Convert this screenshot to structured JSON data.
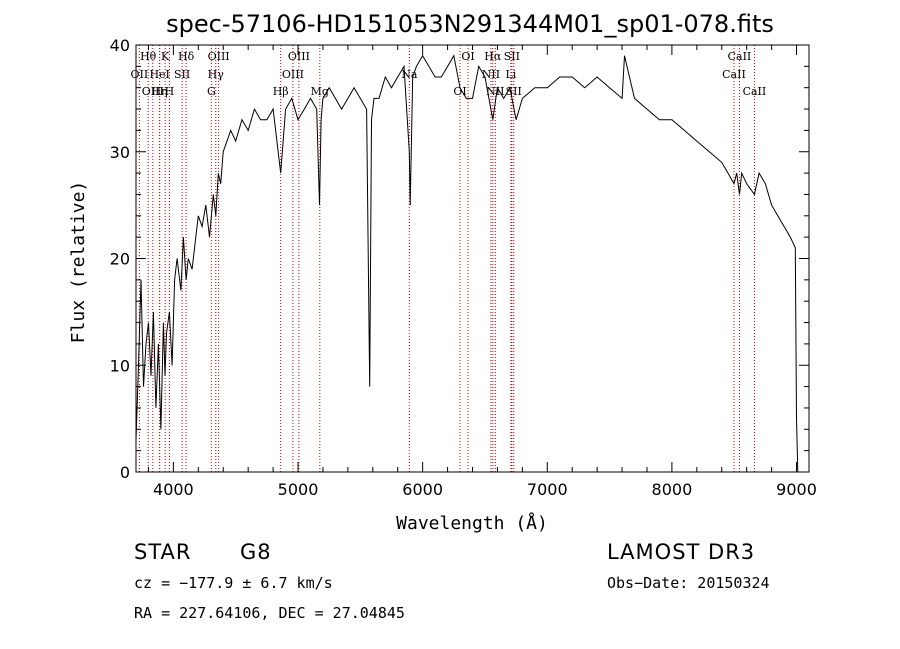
{
  "chart_data": {
    "type": "line",
    "title": "spec-57106-HD151053N291344M01_sp01-078.fits",
    "xlabel": "Wavelength (Å)",
    "ylabel": "Flux (relative)",
    "xlim": [
      3700,
      9100
    ],
    "ylim": [
      0,
      40
    ],
    "xticks": [
      4000,
      5000,
      6000,
      7000,
      8000,
      9000
    ],
    "yticks": [
      0,
      10,
      20,
      30,
      40
    ],
    "grid": false,
    "series": [
      {
        "color": "#000000",
        "x": [
          3700,
          3720,
          3740,
          3760,
          3780,
          3800,
          3820,
          3840,
          3860,
          3880,
          3900,
          3920,
          3933,
          3945,
          3968,
          3990,
          4010,
          4030,
          4060,
          4080,
          4102,
          4120,
          4150,
          4180,
          4200,
          4230,
          4260,
          4290,
          4320,
          4340,
          4360,
          4380,
          4400,
          4430,
          4460,
          4500,
          4550,
          4600,
          4650,
          4700,
          4750,
          4800,
          4861,
          4900,
          4950,
          5000,
          5050,
          5100,
          5150,
          5172,
          5185,
          5200,
          5250,
          5300,
          5350,
          5400,
          5450,
          5500,
          5550,
          5575,
          5590,
          5610,
          5650,
          5700,
          5750,
          5800,
          5850,
          5893,
          5900,
          5920,
          5950,
          6000,
          6050,
          6100,
          6150,
          6200,
          6250,
          6300,
          6350,
          6400,
          6450,
          6500,
          6563,
          6600,
          6650,
          6700,
          6750,
          6800,
          6900,
          7000,
          7100,
          7200,
          7300,
          7400,
          7500,
          7600,
          7620,
          7700,
          7800,
          7900,
          8000,
          8100,
          8200,
          8300,
          8400,
          8450,
          8498,
          8520,
          8542,
          8560,
          8600,
          8662,
          8700,
          8750,
          8800,
          8850,
          8900,
          8950,
          8990,
          9000,
          9010
        ],
        "y": [
          3,
          10,
          18,
          8,
          12,
          14,
          9,
          15,
          6,
          12,
          4,
          14,
          9,
          13,
          15,
          10,
          18,
          20,
          17,
          22,
          18,
          20,
          19,
          22,
          24,
          23,
          25,
          22,
          26,
          24,
          28,
          27,
          30,
          31,
          32,
          31,
          33,
          32,
          34,
          33,
          33,
          34,
          28,
          34,
          35,
          33,
          34,
          35,
          34,
          25,
          33,
          35,
          36,
          35,
          34,
          35,
          36,
          35,
          34,
          8,
          33,
          35,
          35,
          37,
          36,
          37,
          38,
          30,
          25,
          37,
          38,
          39,
          38,
          37,
          37,
          38,
          39,
          36,
          35,
          35,
          38,
          37,
          33,
          36,
          35,
          36,
          33,
          35,
          36,
          36,
          37,
          37,
          36,
          37,
          36,
          35,
          39,
          35,
          34,
          33,
          33,
          32,
          31,
          30,
          29,
          28,
          27,
          28,
          26,
          28,
          27,
          26,
          28,
          27,
          25,
          24,
          23,
          22,
          21,
          5,
          0
        ]
      }
    ],
    "lines": [
      {
        "name": "OII",
        "wl": 3727,
        "row": 1
      },
      {
        "name": "Hθ",
        "wl": 3798,
        "row": 0
      },
      {
        "name": "OIII",
        "wl": 3835,
        "row": 2
      },
      {
        "name": "Hη",
        "wl": 3889,
        "row": 2
      },
      {
        "name": "HeI",
        "wl": 3890,
        "row": 1
      },
      {
        "name": "K",
        "wl": 3934,
        "row": 0
      },
      {
        "name": "H",
        "wl": 3968,
        "row": 2
      },
      {
        "name": "SII",
        "wl": 4070,
        "row": 1
      },
      {
        "name": "Hδ",
        "wl": 4102,
        "row": 0
      },
      {
        "name": "G",
        "wl": 4305,
        "row": 2
      },
      {
        "name": "Hγ",
        "wl": 4340,
        "row": 1
      },
      {
        "name": "OIII",
        "wl": 4363,
        "row": 0
      },
      {
        "name": "Hβ",
        "wl": 4861,
        "row": 2
      },
      {
        "name": "OIII",
        "wl": 4959,
        "row": 1
      },
      {
        "name": "OIII",
        "wl": 5007,
        "row": 0
      },
      {
        "name": "Mg",
        "wl": 5175,
        "row": 2
      },
      {
        "name": "Na",
        "wl": 5893,
        "row": 1
      },
      {
        "name": "OI",
        "wl": 6300,
        "row": 2
      },
      {
        "name": "OI",
        "wl": 6364,
        "row": 0
      },
      {
        "name": "NII",
        "wl": 6548,
        "row": 1
      },
      {
        "name": "Hα",
        "wl": 6563,
        "row": 0
      },
      {
        "name": "NII",
        "wl": 6583,
        "row": 2
      },
      {
        "name": "Li",
        "wl": 6708,
        "row": 1
      },
      {
        "name": "SII",
        "wl": 6716,
        "row": 0
      },
      {
        "name": "SII",
        "wl": 6731,
        "row": 2
      },
      {
        "name": "CaII",
        "wl": 8498,
        "row": 1
      },
      {
        "name": "CaII",
        "wl": 8542,
        "row": 0
      },
      {
        "name": "CaII",
        "wl": 8662,
        "row": 2
      }
    ]
  },
  "info": {
    "class": "STAR",
    "subclass": "G8",
    "survey": "LAMOST DR3",
    "cz": "cz = −177.9 ± 6.7 km/s",
    "obsdate": "Obs−Date: 20150324",
    "radec": "RA = 227.64106, DEC =  27.04845"
  }
}
